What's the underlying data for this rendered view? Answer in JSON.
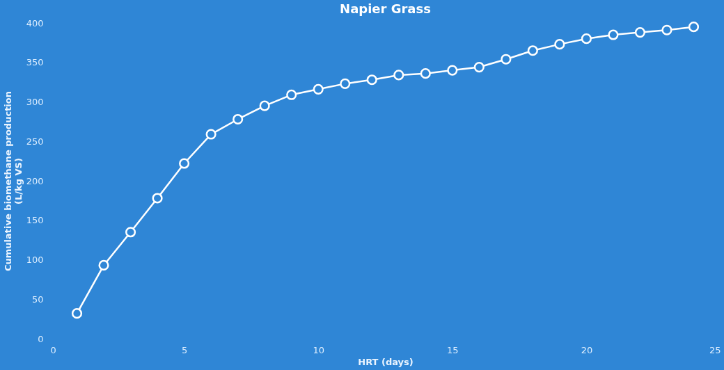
{
  "chart_data": {
    "type": "line",
    "title": "Napier Grass",
    "xlabel": "HRT (days)",
    "ylabel": "Cumulative biomethane production (L/kg VS)",
    "x": [
      1,
      2,
      3,
      4,
      5,
      6,
      7,
      8,
      9,
      10,
      11,
      12,
      13,
      14,
      15,
      16,
      17,
      18,
      19,
      20,
      21,
      22,
      23,
      24
    ],
    "series": [
      {
        "color": "#ffffff",
        "values": [
          32,
          93,
          135,
          178,
          222,
          259,
          278,
          295,
          309,
          316,
          323,
          328,
          334,
          336,
          340,
          344,
          354,
          365,
          373,
          380,
          385,
          388,
          391,
          395
        ]
      }
    ],
    "xlim": [
      0,
      25
    ],
    "xticks": [
      0,
      5,
      10,
      15,
      20,
      25
    ],
    "ylim": [
      0,
      400
    ],
    "yticks": [
      0,
      50,
      100,
      150,
      200,
      250,
      300,
      350,
      400
    ],
    "grid": false,
    "marker": "circle",
    "line_style": "solid"
  }
}
